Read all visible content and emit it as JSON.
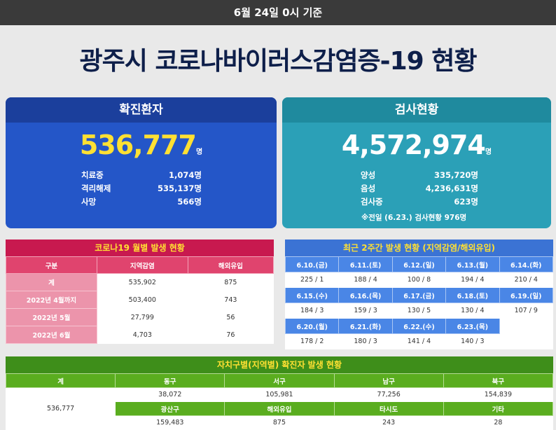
{
  "topbar": {
    "date": "6월 24일 0시 기준"
  },
  "title": "광주시 코로나바이러스감염증-19 현황",
  "confirmed": {
    "heading": "확진환자",
    "total": "536,777",
    "unit": "명",
    "stats": [
      {
        "label": "치료중",
        "value": "1,074명"
      },
      {
        "label": "격리해제",
        "value": "535,137명"
      },
      {
        "label": "사망",
        "value": "566명"
      }
    ]
  },
  "tests": {
    "heading": "검사현황",
    "total": "4,572,974",
    "unit": "명",
    "stats": [
      {
        "label": "양성",
        "value": "335,720명"
      },
      {
        "label": "음성",
        "value": "4,236,631명"
      },
      {
        "label": "검사중",
        "value": "623명"
      }
    ],
    "note": "※전일 (6.23.) 검사현황 976명"
  },
  "monthly": {
    "heading": "코로나19 월별 발생 현황",
    "columns": [
      "구분",
      "지역감염",
      "해외유입"
    ],
    "rows": [
      [
        "계",
        "535,902",
        "875"
      ],
      [
        "2022년 4월까지",
        "503,400",
        "743"
      ],
      [
        "2022년 5월",
        "27,799",
        "56"
      ],
      [
        "2022년 6월",
        "4,703",
        "76"
      ]
    ]
  },
  "weekly": {
    "heading": "최근 2주간 발생 현황 (지역감염/해외유입)",
    "weeks": [
      {
        "dates": [
          "6.10.(금)",
          "6.11.(토)",
          "6.12.(일)",
          "6.13.(월)",
          "6.14.(화)"
        ],
        "values": [
          "225 / 1",
          "188 / 4",
          "100 / 8",
          "194 / 4",
          "210 / 4"
        ]
      },
      {
        "dates": [
          "6.15.(수)",
          "6.16.(목)",
          "6.17.(금)",
          "6.18.(토)",
          "6.19.(일)"
        ],
        "values": [
          "184 / 3",
          "159 / 3",
          "130 / 5",
          "130 / 4",
          "107 / 9"
        ]
      },
      {
        "dates": [
          "6.20.(월)",
          "6.21.(화)",
          "6.22.(수)",
          "6.23.(목)"
        ],
        "values": [
          "178 / 2",
          "180 / 3",
          "141 / 4",
          "140 / 3"
        ]
      }
    ]
  },
  "district": {
    "heading": "자치구별(지역별) 확진자 발생 현황",
    "total_label": "계",
    "total_value": "536,777",
    "row1": {
      "labels": [
        "동구",
        "서구",
        "남구",
        "북구"
      ],
      "values": [
        "38,072",
        "105,981",
        "77,256",
        "154,839"
      ]
    },
    "row2": {
      "labels": [
        "광산구",
        "해외유입",
        "타시도",
        "기타"
      ],
      "values": [
        "159,483",
        "875",
        "243",
        "28"
      ]
    }
  },
  "colors": {
    "confirmed_bg": "#2456c8",
    "tests_bg": "#2ba0b7",
    "monthly_head": "#c8194f",
    "weekly_head": "#3b73d4",
    "district_head": "#3e8e1a",
    "highlight": "#ffe033"
  }
}
